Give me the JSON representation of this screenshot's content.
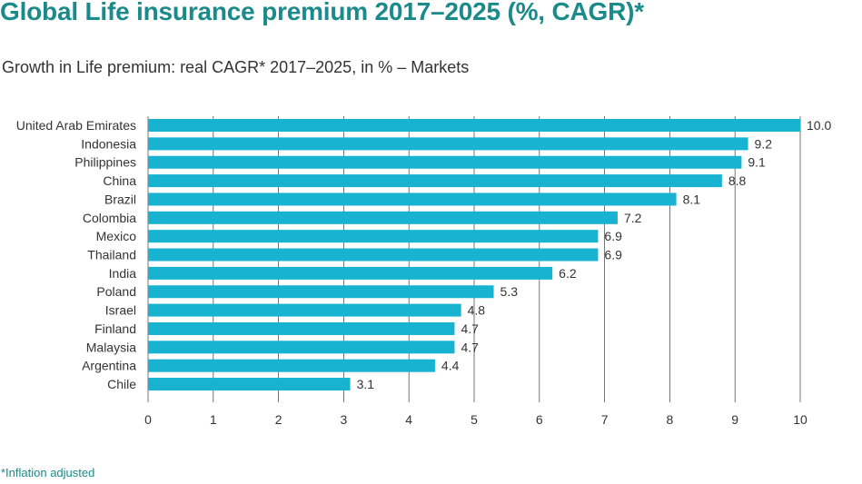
{
  "title": "Global Life insurance premium 2017–2025 (%, CAGR)*",
  "subtitle": "Growth in Life premium: real CAGR* 2017–2025, in % – Markets",
  "footnote": "*Inflation adjusted",
  "colors": {
    "bar": "#17b3d1",
    "title": "#1b8a8a",
    "grid": "#555555"
  },
  "chart_data": {
    "type": "bar",
    "orientation": "horizontal",
    "categories": [
      "United Arab Emirates",
      "Indonesia",
      "Philippines",
      "China",
      "Brazil",
      "Colombia",
      "Mexico",
      "Thailand",
      "India",
      "Poland",
      "Israel",
      "Finland",
      "Malaysia",
      "Argentina",
      "Chile"
    ],
    "values": [
      10.0,
      9.2,
      9.1,
      8.8,
      8.1,
      7.2,
      6.9,
      6.9,
      6.2,
      5.3,
      4.8,
      4.7,
      4.7,
      4.4,
      3.1
    ],
    "value_labels": [
      "10.0",
      "9.2",
      "9.1",
      "8.8",
      "8.1",
      "7.2",
      "6.9",
      "6.9",
      "6.2",
      "5.3",
      "4.8",
      "4.7",
      "4.7",
      "4.4",
      "3.1"
    ],
    "xlim": [
      0,
      10
    ],
    "xticks": [
      "0",
      "1",
      "2",
      "3",
      "4",
      "5",
      "6",
      "7",
      "8",
      "9",
      "10"
    ],
    "grid": true,
    "xlabel": "",
    "ylabel": ""
  }
}
